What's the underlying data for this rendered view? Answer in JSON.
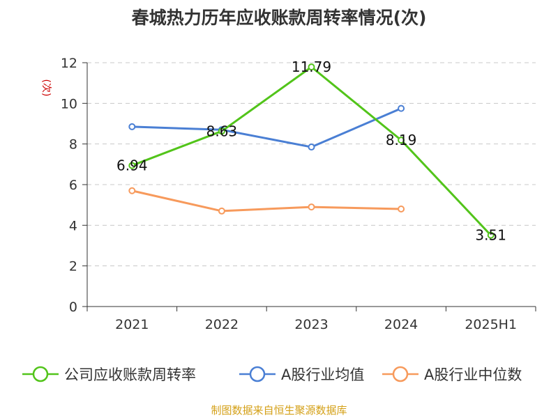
{
  "chart_data": {
    "type": "line",
    "title": "春城热力历年应收账款周转率情况(次)",
    "ylabel": "(次)",
    "xlabel": "",
    "categories": [
      "2021",
      "2022",
      "2023",
      "2024",
      "2025H1"
    ],
    "ylim": [
      0,
      12
    ],
    "yticks": [
      0,
      2,
      4,
      6,
      8,
      10,
      12
    ],
    "grid": "horizontal-dashed",
    "legend_position": "bottom",
    "series": [
      {
        "name": "公司应收账款周转率",
        "color": "#52c41a",
        "values": [
          6.94,
          8.63,
          11.79,
          8.19,
          3.51
        ],
        "labels": [
          "6.94",
          "8.63",
          "11.79",
          "8.19",
          "3.51"
        ]
      },
      {
        "name": "A股行业均值",
        "color": "#4a7fd4",
        "values": [
          8.85,
          8.7,
          7.85,
          9.75,
          null
        ]
      },
      {
        "name": "A股行业中位数",
        "color": "#f79a5c",
        "values": [
          5.7,
          4.7,
          4.9,
          4.8,
          null
        ]
      }
    ]
  },
  "footer": {
    "source": "制图数据来自恒生聚源数据库"
  }
}
